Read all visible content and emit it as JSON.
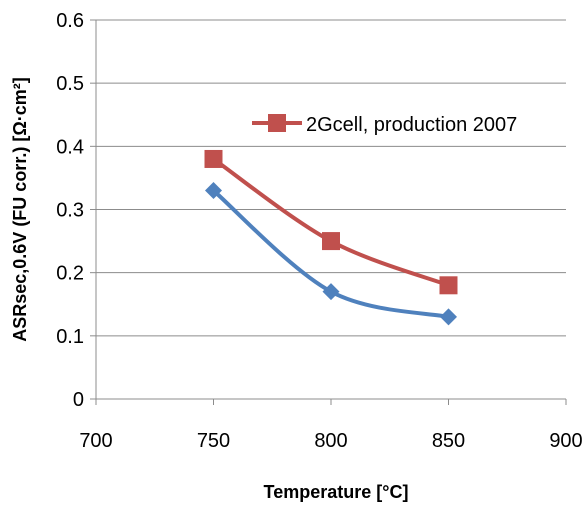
{
  "chart_data": {
    "type": "line",
    "xlabel": "Temperature [°C]",
    "ylabel": "ASRsec,0.6V (FU corr.) [Ω·cm²]",
    "xlim": [
      700,
      900
    ],
    "ylim": [
      0,
      0.6
    ],
    "x_ticks": [
      700,
      750,
      800,
      850,
      900
    ],
    "y_ticks": [
      0,
      0.1,
      0.2,
      0.3,
      0.4,
      0.5,
      0.6
    ],
    "x_tick_labels": [
      "700",
      "750",
      "800",
      "850",
      "900"
    ],
    "y_tick_labels": [
      "0",
      "0.1",
      "0.2",
      "0.3",
      "0.4",
      "0.5",
      "0.6"
    ],
    "grid": "horizontal",
    "legend_position": "upper-right",
    "series": [
      {
        "name": "2Gcell, production 2007",
        "color": "#c0504d",
        "marker": "square",
        "x": [
          750,
          800,
          850
        ],
        "y": [
          0.38,
          0.25,
          0.18
        ]
      },
      {
        "color": "#4f81bd",
        "marker": "diamond",
        "x": [
          750,
          800,
          850
        ],
        "y": [
          0.33,
          0.17,
          0.13
        ]
      }
    ]
  }
}
